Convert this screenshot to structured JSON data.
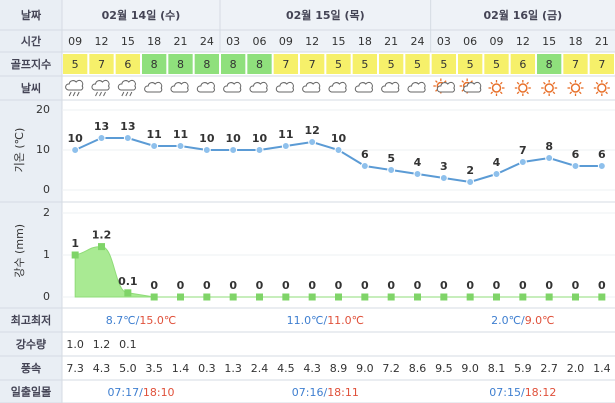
{
  "labels": {
    "date": "날짜",
    "time": "시간",
    "golf": "골프지수",
    "weather": "날씨",
    "high_low": "최고최저",
    "precip": "강수량",
    "wind": "풍속",
    "sun": "일출일몰"
  },
  "dates": [
    "02월 14일 (수)",
    "02월 15일 (목)",
    "02월 16일 (금)"
  ],
  "times": [
    "09",
    "12",
    "15",
    "18",
    "21",
    "24",
    "03",
    "06",
    "09",
    "12",
    "15",
    "18",
    "21",
    "24",
    "03",
    "06",
    "09",
    "12",
    "15",
    "18",
    "21"
  ],
  "golf_index": [
    5,
    7,
    6,
    8,
    8,
    8,
    8,
    8,
    7,
    7,
    5,
    5,
    5,
    5,
    5,
    5,
    5,
    6,
    8,
    7,
    7
  ],
  "temperature": {
    "axis_label": "기온 (℃)",
    "ylim": [
      -2,
      22
    ],
    "yticks": [
      0,
      10,
      20
    ],
    "values": [
      10,
      13,
      13,
      11,
      11,
      10,
      10,
      10,
      11,
      12,
      10,
      6,
      5,
      4,
      3,
      2,
      4,
      7,
      8,
      6,
      6
    ]
  },
  "precip_chart": {
    "axis_label": "강수 (mm)",
    "ylim": [
      0,
      2.2
    ],
    "yticks": [
      0,
      1,
      2
    ],
    "values": [
      1,
      1.2,
      0.1,
      0,
      0,
      0,
      0,
      0,
      0,
      0,
      0,
      0,
      0,
      0,
      0,
      0,
      0,
      0,
      0,
      0,
      0
    ]
  },
  "high_low": [
    {
      "low": "8.7℃",
      "high": "15.0℃"
    },
    {
      "low": "11.0℃",
      "high": "11.0℃"
    },
    {
      "low": "2.0℃",
      "high": "9.0℃"
    }
  ],
  "precip": [
    "1.0",
    "1.2",
    "0.1"
  ],
  "wind": [
    "7.3",
    "4.3",
    "5.0",
    "3.5",
    "1.4",
    "0.3",
    "1.3",
    "2.4",
    "4.5",
    "4.3",
    "8.9",
    "9.0",
    "7.2",
    "8.6",
    "9.5",
    "9.0",
    "8.1",
    "5.9",
    "2.7",
    "2.0",
    "1.4"
  ],
  "sun": [
    {
      "rise": "07:17",
      "set": "18:10"
    },
    {
      "rise": "07:16",
      "set": "18:11"
    },
    {
      "rise": "07:15",
      "set": "18:12"
    }
  ]
}
